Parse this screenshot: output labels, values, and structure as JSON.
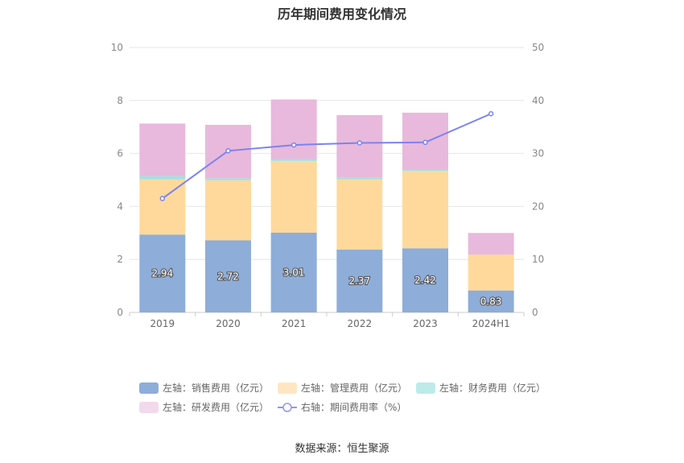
{
  "chart_data": {
    "type": "bar",
    "title": "历年期间费用变化情况",
    "categories": [
      "2019",
      "2020",
      "2021",
      "2022",
      "2023",
      "2024H1"
    ],
    "y_left": {
      "min": 0,
      "max": 10,
      "ticks": [
        0,
        2,
        4,
        6,
        8,
        10
      ]
    },
    "y_right": {
      "min": 0,
      "max": 50,
      "ticks": [
        0,
        10,
        20,
        30,
        40,
        50
      ]
    },
    "stacked": true,
    "grid": true,
    "legend_position": "bottom",
    "series": [
      {
        "name": "左轴：销售费用（亿元）",
        "type": "bar",
        "axis": "left",
        "color": "#8eadd9",
        "values": [
          2.94,
          2.72,
          3.01,
          2.37,
          2.42,
          0.83
        ],
        "data_labels": [
          "2.94",
          "2.72",
          "3.01",
          "2.37",
          "2.42",
          "0.83"
        ]
      },
      {
        "name": "左轴：管理费用（亿元）",
        "type": "bar",
        "axis": "left",
        "color": "#ffd99c",
        "values": [
          2.08,
          2.27,
          2.71,
          2.66,
          2.92,
          1.35
        ]
      },
      {
        "name": "左轴：财务费用（亿元）",
        "type": "bar",
        "axis": "left",
        "color": "#a3e0e0",
        "values": [
          0.12,
          0.08,
          0.07,
          0.07,
          0.07,
          0.0
        ]
      },
      {
        "name": "左轴：研发费用（亿元）",
        "type": "bar",
        "axis": "left",
        "color": "#e8b9dc",
        "values": [
          1.99,
          2.01,
          2.25,
          2.35,
          2.13,
          0.82
        ]
      },
      {
        "name": "右轴：期间费用率（%）",
        "type": "line",
        "axis": "right",
        "color": "#7b83f0",
        "values": [
          21.5,
          30.5,
          31.6,
          32.0,
          32.1,
          37.5
        ]
      }
    ]
  },
  "legend_colors": {
    "sales": "#8eadd9",
    "admin": "#ffe6c2",
    "finance": "#bfeaea",
    "rnd": "#f2d9ec",
    "rate": "#8f96f0"
  },
  "source": "数据来源：恒生聚源"
}
